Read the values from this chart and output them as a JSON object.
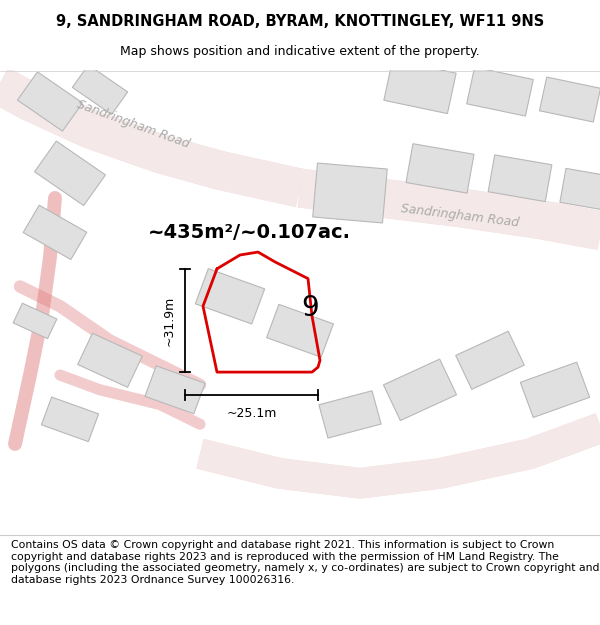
{
  "title": "9, SANDRINGHAM ROAD, BYRAM, KNOTTINGLEY, WF11 9NS",
  "subtitle": "Map shows position and indicative extent of the property.",
  "footer": "Contains OS data © Crown copyright and database right 2021. This information is subject to Crown copyright and database rights 2023 and is reproduced with the permission of HM Land Registry. The polygons (including the associated geometry, namely x, y co-ordinates) are subject to Crown copyright and database rights 2023 Ordnance Survey 100026316.",
  "area_text": "~435m²/~0.107ac.",
  "dim_width": "~25.1m",
  "dim_height": "~31.9m",
  "property_label": "9",
  "map_bg": "#ffffff",
  "road_fill_color": "#f5e8e8",
  "road_edge_color": "#e08080",
  "building_color": "#e0e0e0",
  "building_edge_color": "#b8b8b8",
  "plot_color": "#dd0000",
  "title_fontsize": 10.5,
  "subtitle_fontsize": 9,
  "footer_fontsize": 7.8,
  "road_label_color": "#aaaaaa",
  "area_fontsize": 14,
  "dim_fontsize": 9
}
